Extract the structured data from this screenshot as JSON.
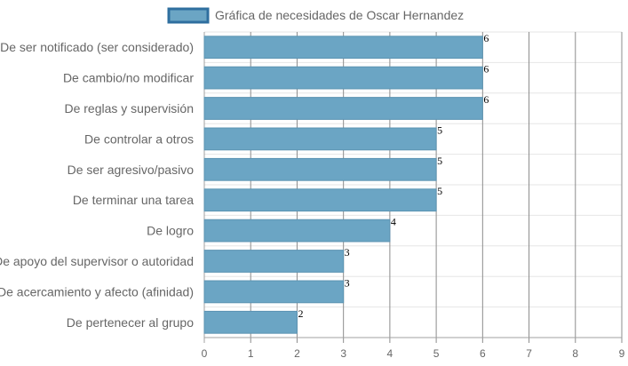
{
  "chart_data": {
    "type": "bar",
    "orientation": "horizontal",
    "categories": [
      "De ser notificado (ser considerado)",
      "De cambio/no modificar",
      "De reglas y supervisión",
      "De controlar a otros",
      "De ser agresivo/pasivo",
      "De terminar una tarea",
      "De logro",
      "De apoyo del supervisor o autoridad",
      "De acercamiento y afecto (afinidad)",
      "De pertenecer al grupo"
    ],
    "series": [
      {
        "name": "Gráfica de necesidades de Oscar Hernandez",
        "values": [
          6,
          6,
          6,
          5,
          5,
          5,
          4,
          3,
          3,
          2
        ]
      }
    ],
    "xlim": [
      0,
      9
    ],
    "x_ticks": [
      "0",
      "1",
      "2",
      "3",
      "4",
      "5",
      "6",
      "7",
      "8",
      "9"
    ],
    "data_labels": [
      "6",
      "6",
      "6",
      "5",
      "5",
      "5",
      "4",
      "3",
      "3",
      "2"
    ],
    "grid": true,
    "legend_position": "top-center",
    "colors": {
      "bar_fill": "#6ba5c4",
      "bar_stroke": "#5b93b2",
      "legend_stroke": "#2f6f9f",
      "grid": "#e6e6e6",
      "grid_vertical": "#8c8c8c",
      "axis": "#a0a0a0",
      "text": "#666666"
    }
  }
}
